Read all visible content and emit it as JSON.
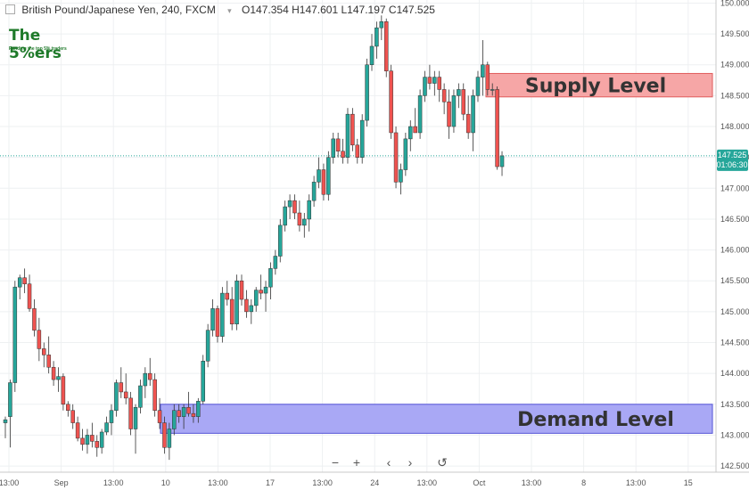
{
  "header": {
    "symbol_title": "British Pound/Japanese Yen, 240, FXCM",
    "open": "O147.354",
    "high": "H147.601",
    "low": "L147.197",
    "close": "C147.525"
  },
  "logo": {
    "brand": "The 5%ers",
    "tagline": "Funding the top 5% traders"
  },
  "price_tag": {
    "price": "147.525",
    "countdown": "01:06:30",
    "color": "#26a69a"
  },
  "toolbar": {
    "zoom_out": "−",
    "zoom_in": "+",
    "scroll_left": "‹",
    "scroll_right": "›",
    "reset": "↺"
  },
  "chart_data": {
    "type": "candlestick",
    "y_ticks": [
      "150.000",
      "149.500",
      "149.000",
      "148.500",
      "148.000",
      "147.500",
      "147.000",
      "146.500",
      "146.000",
      "145.500",
      "145.000",
      "144.500",
      "144.000",
      "143.500",
      "143.000",
      "142.500"
    ],
    "x_ticks": [
      "13:00",
      "Sep",
      "13:00",
      "10",
      "13:00",
      "17",
      "13:00",
      "24",
      "13:00",
      "Oct",
      "13:00",
      "8",
      "13:00",
      "15"
    ],
    "ylim": [
      142.4,
      150.05
    ],
    "up_color": "#26a69a",
    "down_color": "#ef5350",
    "zones": [
      {
        "label": "Supply Level",
        "low": 148.48,
        "high": 148.86,
        "fill": "#f6a6a6",
        "border": "#e05d5d"
      },
      {
        "label": "Demand Level",
        "low": 143.03,
        "high": 143.5,
        "fill": "#a9a8f5",
        "border": "#5454d6"
      }
    ],
    "candles": [
      [
        143.2,
        143.3,
        142.95,
        143.25
      ],
      [
        143.3,
        143.9,
        142.8,
        143.85
      ],
      [
        143.85,
        145.5,
        143.7,
        145.4
      ],
      [
        145.4,
        145.6,
        145.2,
        145.55
      ],
      [
        145.55,
        145.7,
        145.3,
        145.45
      ],
      [
        145.45,
        145.6,
        145.0,
        145.05
      ],
      [
        145.05,
        145.2,
        144.6,
        144.7
      ],
      [
        144.7,
        144.9,
        144.2,
        144.4
      ],
      [
        144.4,
        144.5,
        144.1,
        144.3
      ],
      [
        144.3,
        144.6,
        144.0,
        144.1
      ],
      [
        144.1,
        144.2,
        143.8,
        143.9
      ],
      [
        143.9,
        144.1,
        143.7,
        143.95
      ],
      [
        143.95,
        144.0,
        143.4,
        143.5
      ],
      [
        143.5,
        143.55,
        143.3,
        143.4
      ],
      [
        143.4,
        143.5,
        143.1,
        143.2
      ],
      [
        143.2,
        143.3,
        142.9,
        142.95
      ],
      [
        142.95,
        143.1,
        142.75,
        142.85
      ],
      [
        142.85,
        143.1,
        142.7,
        143.0
      ],
      [
        143.0,
        143.2,
        142.8,
        142.9
      ],
      [
        142.9,
        143.0,
        142.65,
        142.8
      ],
      [
        142.8,
        143.1,
        142.7,
        143.05
      ],
      [
        143.05,
        143.3,
        143.0,
        143.2
      ],
      [
        143.2,
        143.5,
        143.0,
        143.4
      ],
      [
        143.4,
        143.9,
        143.3,
        143.85
      ],
      [
        143.85,
        144.1,
        143.6,
        143.7
      ],
      [
        143.7,
        144.0,
        143.5,
        143.6
      ],
      [
        143.6,
        143.7,
        143.0,
        143.1
      ],
      [
        143.1,
        143.5,
        142.7,
        143.45
      ],
      [
        143.45,
        143.9,
        143.35,
        143.8
      ],
      [
        143.8,
        144.1,
        143.6,
        144.0
      ],
      [
        144.0,
        144.25,
        143.8,
        143.9
      ],
      [
        143.9,
        144.0,
        143.3,
        143.4
      ],
      [
        143.4,
        143.6,
        143.1,
        143.2
      ],
      [
        143.2,
        143.3,
        142.7,
        142.8
      ],
      [
        142.8,
        143.2,
        142.6,
        143.1
      ],
      [
        143.1,
        143.5,
        143.0,
        143.4
      ],
      [
        143.4,
        143.5,
        143.2,
        143.3
      ],
      [
        143.3,
        143.5,
        143.1,
        143.45
      ],
      [
        143.45,
        143.7,
        143.3,
        143.35
      ],
      [
        143.35,
        143.5,
        143.2,
        143.3
      ],
      [
        143.3,
        143.6,
        143.2,
        143.55
      ],
      [
        143.55,
        144.3,
        143.5,
        144.2
      ],
      [
        144.2,
        144.8,
        144.1,
        144.7
      ],
      [
        144.7,
        145.2,
        144.6,
        145.05
      ],
      [
        145.05,
        145.1,
        144.5,
        144.6
      ],
      [
        144.6,
        145.4,
        144.5,
        145.3
      ],
      [
        145.3,
        145.5,
        145.1,
        145.2
      ],
      [
        145.2,
        145.4,
        144.7,
        144.8
      ],
      [
        144.8,
        145.6,
        144.7,
        145.5
      ],
      [
        145.5,
        145.6,
        145.1,
        145.2
      ],
      [
        145.2,
        145.35,
        144.9,
        145.0
      ],
      [
        145.0,
        145.2,
        144.8,
        145.1
      ],
      [
        145.1,
        145.4,
        145.0,
        145.35
      ],
      [
        145.35,
        145.6,
        145.2,
        145.3
      ],
      [
        145.3,
        145.5,
        145.0,
        145.4
      ],
      [
        145.4,
        145.8,
        145.2,
        145.7
      ],
      [
        145.7,
        146.0,
        145.6,
        145.9
      ],
      [
        145.9,
        146.5,
        145.8,
        146.4
      ],
      [
        146.4,
        146.8,
        146.3,
        146.7
      ],
      [
        146.7,
        146.9,
        146.5,
        146.8
      ],
      [
        146.8,
        146.9,
        146.5,
        146.6
      ],
      [
        146.6,
        146.8,
        146.3,
        146.4
      ],
      [
        146.4,
        146.6,
        146.2,
        146.5
      ],
      [
        146.5,
        146.9,
        146.3,
        146.8
      ],
      [
        146.8,
        147.2,
        146.7,
        147.1
      ],
      [
        147.1,
        147.5,
        147.0,
        147.3
      ],
      [
        147.3,
        147.4,
        146.8,
        146.9
      ],
      [
        146.9,
        147.6,
        146.8,
        147.5
      ],
      [
        147.5,
        147.9,
        147.4,
        147.8
      ],
      [
        147.8,
        147.9,
        147.5,
        147.6
      ],
      [
        147.6,
        147.8,
        147.4,
        147.5
      ],
      [
        147.5,
        148.3,
        147.4,
        148.2
      ],
      [
        148.2,
        148.3,
        147.6,
        147.7
      ],
      [
        147.7,
        147.8,
        147.4,
        147.5
      ],
      [
        147.5,
        148.2,
        147.4,
        148.1
      ],
      [
        148.1,
        149.1,
        148.0,
        149.0
      ],
      [
        149.0,
        149.5,
        148.9,
        149.3
      ],
      [
        149.3,
        149.7,
        149.1,
        149.6
      ],
      [
        149.6,
        149.8,
        149.4,
        149.7
      ],
      [
        149.7,
        149.75,
        148.8,
        148.9
      ],
      [
        148.9,
        149.0,
        147.8,
        147.9
      ],
      [
        147.9,
        148.0,
        147.0,
        147.1
      ],
      [
        147.1,
        147.4,
        146.9,
        147.3
      ],
      [
        147.3,
        147.9,
        147.2,
        147.8
      ],
      [
        147.8,
        148.1,
        147.6,
        148.0
      ],
      [
        148.0,
        148.3,
        147.9,
        147.9
      ],
      [
        147.9,
        148.6,
        147.8,
        148.5
      ],
      [
        148.5,
        148.9,
        148.4,
        148.8
      ],
      [
        148.8,
        149.0,
        148.6,
        148.7
      ],
      [
        148.7,
        148.9,
        148.5,
        148.8
      ],
      [
        148.8,
        148.9,
        148.4,
        148.6
      ],
      [
        148.6,
        148.7,
        148.2,
        148.4
      ],
      [
        148.4,
        148.6,
        147.8,
        148.0
      ],
      [
        148.0,
        148.6,
        147.9,
        148.5
      ],
      [
        148.5,
        148.7,
        148.3,
        148.6
      ],
      [
        148.6,
        148.7,
        148.1,
        148.2
      ],
      [
        148.2,
        148.5,
        147.8,
        147.9
      ],
      [
        147.9,
        148.6,
        147.6,
        148.5
      ],
      [
        148.5,
        148.9,
        148.4,
        148.8
      ],
      [
        148.8,
        149.4,
        148.5,
        149.0
      ],
      [
        149.0,
        149.05,
        148.5,
        148.6
      ],
      [
        148.6,
        148.7,
        148.5,
        148.6
      ],
      [
        148.6,
        148.65,
        147.3,
        147.35
      ],
      [
        147.35,
        147.6,
        147.2,
        147.525
      ]
    ]
  }
}
